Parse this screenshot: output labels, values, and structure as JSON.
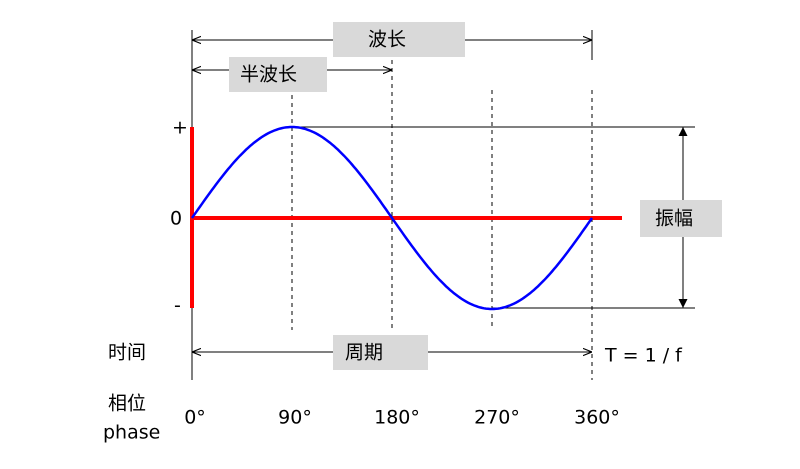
{
  "wavelength": "波长",
  "half_wavelength": "半波长",
  "amplitude": "振幅",
  "y_labels": {
    "plus": "+",
    "zero": "0",
    "minus": "-"
  },
  "time_label": "时间",
  "period": "周期",
  "period_formula": "T = 1 / f",
  "phase_label": "相位",
  "phase_label_en": "phase",
  "phases": [
    "0°",
    "90°",
    "180°",
    "270°",
    "360°"
  ]
}
